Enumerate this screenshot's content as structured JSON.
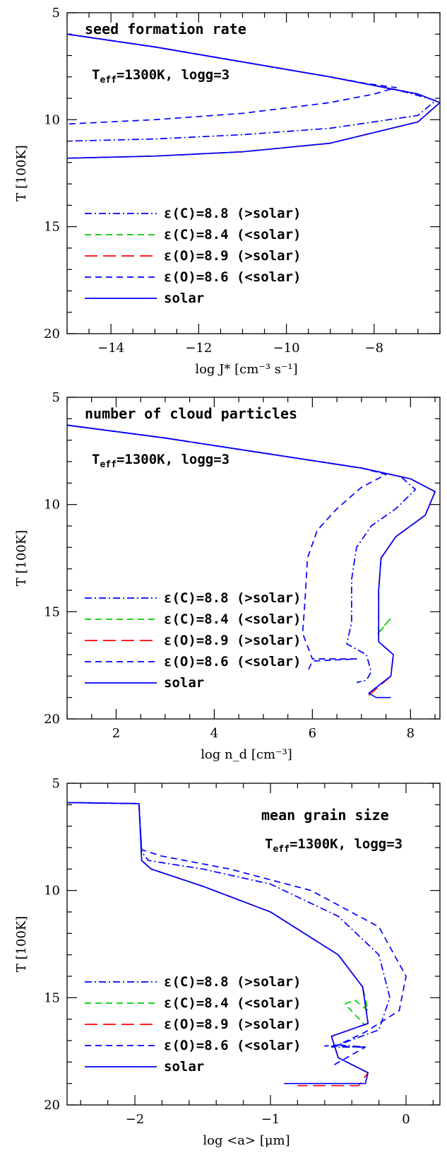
{
  "colors": {
    "blue": "#0000ff",
    "green": "#00cc00",
    "red": "#ff0000"
  },
  "legend": [
    {
      "label": "ε(C)=8.8 (>solar)",
      "color": "#0000ff",
      "style": "dash-dot"
    },
    {
      "label": "ε(C)=8.4 (<solar)",
      "color": "#00cc00",
      "style": "dash"
    },
    {
      "label": "ε(O)=8.9 (>solar)",
      "color": "#ff0000",
      "style": "long-dash"
    },
    {
      "label": "ε(O)=8.6 (<solar)",
      "color": "#0000ff",
      "style": "dash"
    },
    {
      "label": "solar",
      "color": "#0000ff",
      "style": "solid"
    }
  ],
  "params_prefix": "T",
  "params_sub": "eff",
  "params_rest": "=1300K, logg=3",
  "chart_data": [
    {
      "type": "line",
      "title": "seed formation rate",
      "xlabel": "log J* [cm⁻³ s⁻¹]",
      "ylabel": "T [100K]",
      "xlim": [
        -15,
        -6.5
      ],
      "ylim": [
        5,
        20
      ],
      "y_inverted": true,
      "xticks": [
        -14,
        -12,
        -10,
        -8
      ],
      "yticks": [
        5,
        10,
        15,
        20
      ],
      "legend_position": "lower-left",
      "series": [
        {
          "name": "ε(C)=8.8 (>solar)",
          "x": [
            -15,
            -13,
            -11,
            -9,
            -8,
            -7.3,
            -6.6,
            -7,
            -9,
            -11,
            -13,
            -15
          ],
          "y": [
            6.0,
            6.6,
            7.3,
            8.0,
            8.4,
            8.7,
            9.1,
            9.8,
            10.4,
            10.7,
            10.9,
            11.0
          ]
        },
        {
          "name": "ε(C)=8.4 (<solar)",
          "x": [
            -15,
            -13,
            -11,
            -9,
            -8,
            -7,
            -6.5,
            -7,
            -9,
            -11,
            -13,
            -15
          ],
          "y": [
            6.0,
            6.6,
            7.3,
            8.0,
            8.4,
            8.8,
            9.2,
            10.1,
            11.1,
            11.5,
            11.7,
            11.8
          ]
        },
        {
          "name": "ε(O)=8.9 (>solar)",
          "x": [
            -15,
            -13,
            -11,
            -9,
            -8,
            -7,
            -6.5,
            -7,
            -9,
            -11,
            -13,
            -15
          ],
          "y": [
            6.0,
            6.6,
            7.3,
            8.0,
            8.4,
            8.8,
            9.2,
            10.1,
            11.1,
            11.5,
            11.7,
            11.8
          ]
        },
        {
          "name": "ε(O)=8.6 (<solar)",
          "x": [
            -15,
            -13,
            -11,
            -9,
            -8.2,
            -7.5,
            -8,
            -9,
            -11,
            -13,
            -15
          ],
          "y": [
            6.0,
            6.6,
            7.3,
            8.0,
            8.3,
            8.5,
            8.8,
            9.2,
            9.7,
            10.0,
            10.2
          ]
        },
        {
          "name": "solar",
          "x": [
            -15,
            -13,
            -11,
            -9,
            -8,
            -7,
            -6.5,
            -7,
            -9,
            -11,
            -13,
            -15
          ],
          "y": [
            6.0,
            6.6,
            7.3,
            8.0,
            8.4,
            8.8,
            9.2,
            10.1,
            11.1,
            11.5,
            11.7,
            11.8
          ]
        }
      ]
    },
    {
      "type": "line",
      "title": "number of cloud particles",
      "xlabel": "log n_d [cm⁻³]",
      "ylabel": "T [100K]",
      "xlim": [
        1,
        8.6
      ],
      "ylim": [
        5,
        20
      ],
      "y_inverted": true,
      "xticks": [
        2,
        4,
        6,
        8
      ],
      "yticks": [
        5,
        10,
        15,
        20
      ],
      "legend_position": "lower-left",
      "series": [
        {
          "name": "ε(C)=8.8 (>solar)",
          "x": [
            1,
            3,
            5,
            7,
            7.8,
            8.1,
            7.7,
            7.2,
            6.9,
            6.8,
            6.8,
            6.7,
            7.1,
            7.2,
            7.1,
            6.9
          ],
          "y": [
            6.3,
            6.9,
            7.6,
            8.3,
            8.7,
            9.3,
            10.2,
            11.0,
            12.0,
            13.5,
            15.5,
            16.5,
            17.0,
            17.8,
            18.2,
            18.3
          ]
        },
        {
          "name": "ε(C)=8.4 (<solar)",
          "x": [
            1,
            3,
            5,
            7,
            8,
            8.5,
            8.3,
            7.7,
            7.4,
            7.35,
            7.35,
            7.45,
            7.6,
            7.3
          ],
          "y": [
            6.3,
            6.9,
            7.6,
            8.3,
            8.8,
            9.4,
            10.5,
            11.5,
            12.5,
            14.0,
            16.0,
            15.7,
            15.3,
            16.1
          ]
        },
        {
          "name": "ε(O)=8.9 (>solar)",
          "x": [
            1,
            3,
            5,
            7,
            8,
            8.5,
            8.3,
            7.7,
            7.4,
            7.35,
            7.35,
            7.65,
            7.6,
            7.15
          ],
          "y": [
            6.3,
            6.9,
            7.6,
            8.3,
            8.8,
            9.4,
            10.5,
            11.5,
            12.5,
            14.0,
            16.4,
            17.0,
            18.0,
            18.9
          ]
        },
        {
          "name": "ε(O)=8.6 (<solar)",
          "x": [
            1,
            3,
            5,
            7,
            7.5,
            7.0,
            6.5,
            6.1,
            5.9,
            5.85,
            5.8,
            6.0,
            6.9,
            6.0,
            5.9
          ],
          "y": [
            6.3,
            6.9,
            7.6,
            8.3,
            8.6,
            9.2,
            10.2,
            11.2,
            12.5,
            14.5,
            16.0,
            17.2,
            17.2,
            17.3,
            17.8
          ]
        },
        {
          "name": "solar",
          "x": [
            1,
            3,
            5,
            7,
            8,
            8.5,
            8.3,
            7.7,
            7.4,
            7.35,
            7.35,
            7.65,
            7.6,
            7.15,
            7.3,
            7.6
          ],
          "y": [
            6.3,
            6.9,
            7.6,
            8.3,
            8.8,
            9.4,
            10.5,
            11.5,
            12.5,
            14.0,
            16.4,
            17.0,
            18.0,
            18.8,
            19.0,
            19.0
          ]
        }
      ]
    },
    {
      "type": "line",
      "title": "mean grain size",
      "xlabel": "log <a> [μm]",
      "ylabel": "T [100K]",
      "xlim": [
        -2.5,
        0.25
      ],
      "ylim": [
        5,
        20
      ],
      "y_inverted": true,
      "xticks": [
        -2,
        -1,
        0
      ],
      "yticks": [
        5,
        10,
        15,
        20
      ],
      "legend_position": "lower-left",
      "series": [
        {
          "name": "ε(C)=8.8 (>solar)",
          "x": [
            -2.5,
            -1.97,
            -1.95,
            -1.9,
            -1.5,
            -1.0,
            -0.5,
            -0.2,
            -0.12,
            -0.2,
            -0.5,
            -0.3,
            -0.55
          ],
          "y": [
            5.9,
            5.95,
            8.2,
            8.6,
            9.0,
            9.7,
            11.2,
            13.0,
            15.0,
            16.5,
            17.2,
            17.3,
            17.3
          ]
        },
        {
          "name": "ε(C)=8.4 (<solar)",
          "x": [
            -2.5,
            -1.97,
            -1.95,
            -1.88,
            -1.5,
            -1.0,
            -0.5,
            -0.32,
            -0.28,
            -0.38,
            -0.45,
            -0.3
          ],
          "y": [
            5.9,
            5.95,
            8.6,
            9.0,
            9.8,
            11.0,
            13.0,
            14.5,
            15.6,
            15.1,
            15.3,
            16.3
          ]
        },
        {
          "name": "ε(O)=8.9 (>solar)",
          "x": [
            -2.5,
            -1.97,
            -1.95,
            -1.88,
            -1.5,
            -1.0,
            -0.5,
            -0.32,
            -0.28,
            -0.55,
            -0.5,
            -0.28,
            -0.35,
            -0.8
          ],
          "y": [
            5.9,
            5.95,
            8.6,
            9.0,
            9.8,
            11.0,
            13.0,
            14.5,
            16.2,
            16.8,
            17.8,
            18.5,
            19.1,
            19.1
          ]
        },
        {
          "name": "ε(O)=8.6 (<solar)",
          "x": [
            -2.5,
            -1.97,
            -1.95,
            -1.8,
            -1.3,
            -0.7,
            -0.2,
            0.0,
            -0.05,
            -0.3,
            -0.5,
            -0.6,
            -0.3,
            -0.55
          ],
          "y": [
            5.9,
            5.95,
            8.1,
            8.4,
            9.0,
            10.0,
            11.7,
            14.0,
            15.6,
            16.6,
            17.2,
            17.25,
            17.3,
            18.2
          ]
        },
        {
          "name": "solar",
          "x": [
            -2.5,
            -1.97,
            -1.95,
            -1.88,
            -1.5,
            -1.0,
            -0.5,
            -0.32,
            -0.28,
            -0.55,
            -0.5,
            -0.28,
            -0.3,
            -0.9
          ],
          "y": [
            5.9,
            5.95,
            8.6,
            9.0,
            9.8,
            11.0,
            13.0,
            14.5,
            16.2,
            16.8,
            17.8,
            18.5,
            19.0,
            19.0
          ]
        }
      ]
    }
  ]
}
